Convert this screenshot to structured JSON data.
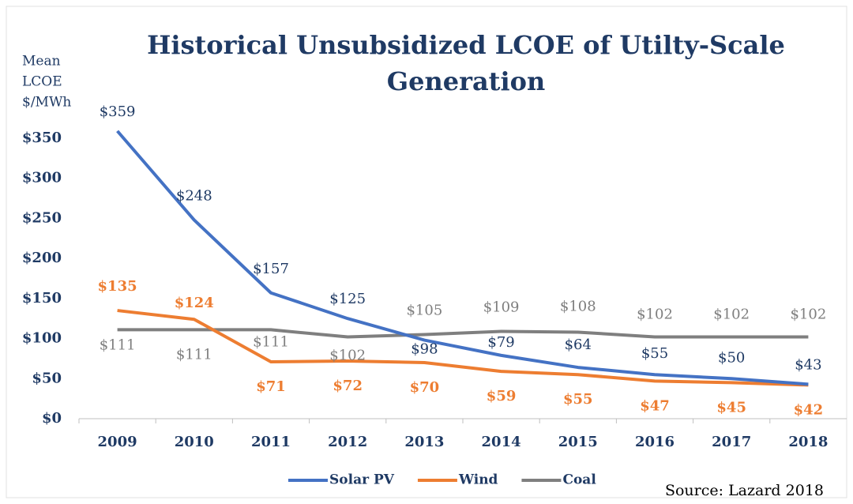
{
  "chart_data": {
    "type": "line",
    "title": "Historical Unsubsidized LCOE of Utilty-Scale Generation",
    "y_label": [
      "Mean",
      "LCOE",
      "$/MWh"
    ],
    "source": "Source: Lazard 2018",
    "categories": [
      "2009",
      "2010",
      "2011",
      "2012",
      "2013",
      "2014",
      "2015",
      "2016",
      "2017",
      "2018"
    ],
    "series": [
      {
        "name": "Solar PV",
        "color": "#4472c4",
        "values": [
          359,
          248,
          157,
          125,
          98,
          79,
          64,
          55,
          50,
          43
        ],
        "value_labels": [
          "$359",
          "$248",
          "$157",
          "$125",
          "$98",
          "$79",
          "$64",
          "$55",
          "$50",
          "$43"
        ]
      },
      {
        "name": "Wind",
        "color": "#ed7d31",
        "values": [
          135,
          124,
          71,
          72,
          70,
          59,
          55,
          47,
          45,
          42
        ],
        "value_labels": [
          "$135",
          "$124",
          "$71",
          "$72",
          "$70",
          "$59",
          "$55",
          "$47",
          "$45",
          "$42"
        ]
      },
      {
        "name": "Coal",
        "color": "#7f7f7f",
        "values": [
          111,
          111,
          111,
          102,
          105,
          109,
          108,
          102,
          102,
          102
        ],
        "value_labels": [
          "$111",
          "$111",
          "$111",
          "$102",
          "$105",
          "$109",
          "$108",
          "$102",
          "$102",
          "$102"
        ]
      }
    ],
    "ylim": [
      0,
      350
    ],
    "yticks": [
      {
        "value": 0,
        "label": "$0"
      },
      {
        "value": 50,
        "label": "$50"
      },
      {
        "value": 100,
        "label": "$100"
      },
      {
        "value": 150,
        "label": "$150"
      },
      {
        "value": 200,
        "label": "$200"
      },
      {
        "value": 250,
        "label": "$250"
      },
      {
        "value": 300,
        "label": "$300"
      },
      {
        "value": 350,
        "label": "$350"
      }
    ],
    "grid": false,
    "legend": "bottom"
  }
}
